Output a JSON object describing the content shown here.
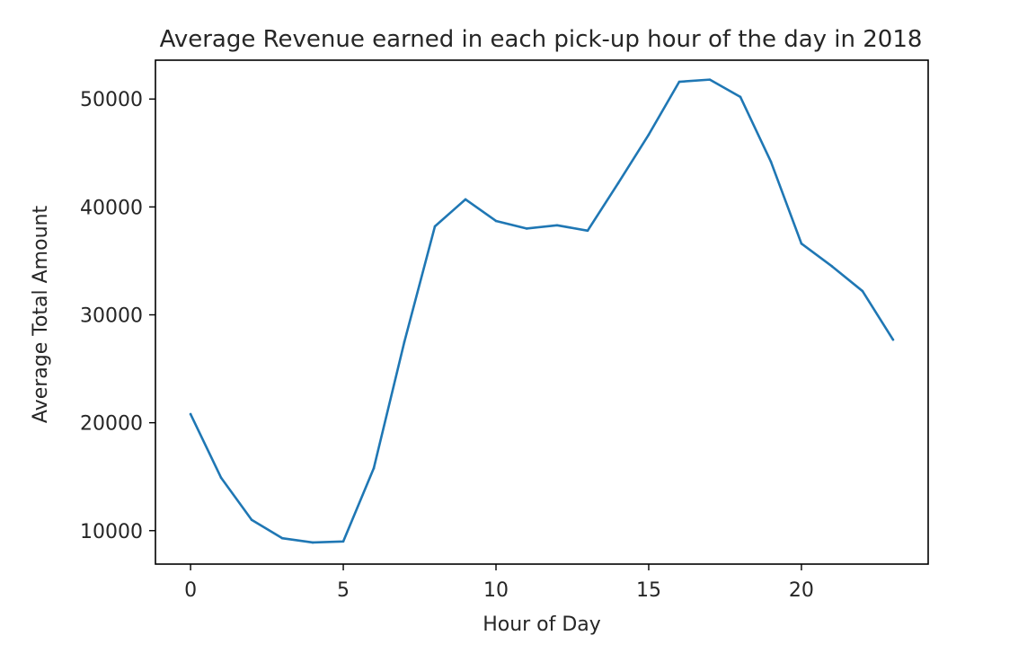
{
  "chart_data": {
    "type": "line",
    "title": "Average Revenue earned in each pick-up hour of the day in 2018",
    "xlabel": "Hour of Day",
    "ylabel": "Average Total Amount",
    "xlim": [
      -1.15,
      24.15
    ],
    "ylim": [
      6900,
      53600
    ],
    "xticks": [
      0,
      5,
      10,
      15,
      20
    ],
    "yticks": [
      10000,
      20000,
      30000,
      40000,
      50000
    ],
    "grid": false,
    "series": [
      {
        "color": "#1f77b4",
        "x": [
          0,
          1,
          2,
          3,
          4,
          5,
          6,
          7,
          8,
          9,
          10,
          11,
          12,
          13,
          14,
          15,
          16,
          17,
          18,
          19,
          20,
          21,
          22,
          23
        ],
        "values": [
          20800,
          14900,
          11000,
          9300,
          8900,
          9000,
          15800,
          27500,
          38200,
          40700,
          38700,
          38000,
          38300,
          37800,
          42200,
          46700,
          51600,
          51800,
          50200,
          44200,
          36600,
          34500,
          32200,
          27700
        ]
      }
    ]
  }
}
